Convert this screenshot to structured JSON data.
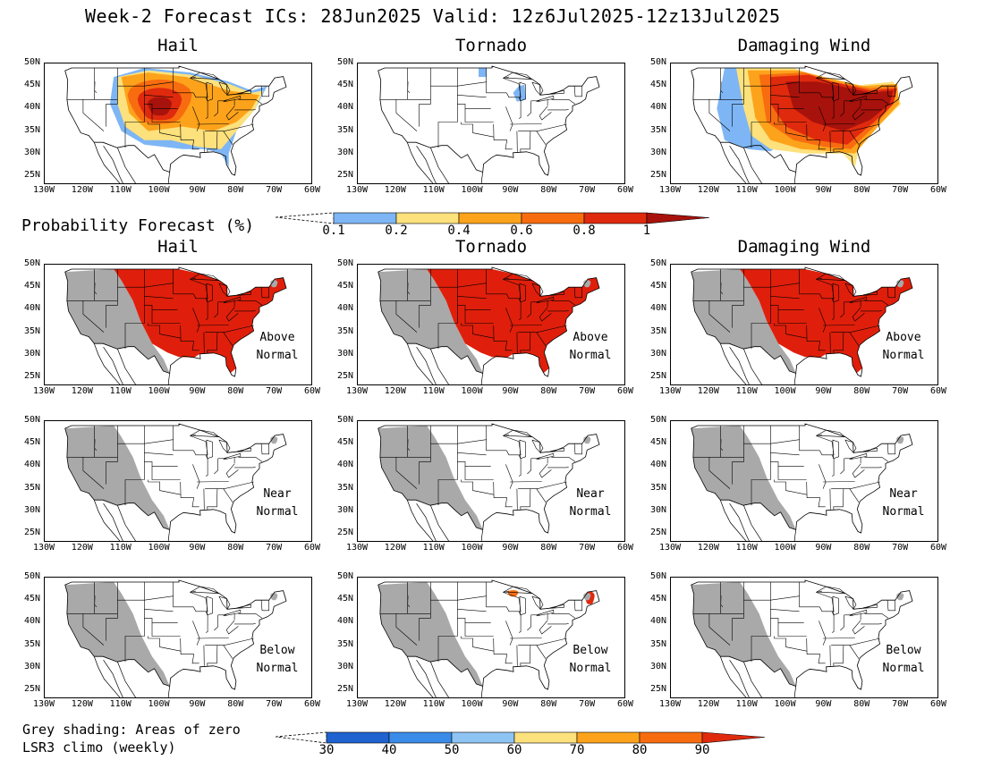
{
  "header": {
    "title": "Week-2 Forecast     ICs: 28Jun2025     Valid: 12z6Jul2025-12z13Jul2025"
  },
  "columns": [
    "Hail",
    "Tornado",
    "Damaging Wind"
  ],
  "prob_section": {
    "label": "Probability Forecast (%)",
    "colorbar": {
      "ticks": [
        "0.1",
        "0.2",
        "0.4",
        "0.6",
        "0.8",
        "1"
      ],
      "colors": [
        "#7eb6f5",
        "#fde17d",
        "#fda31b",
        "#f86c10",
        "#df2a0e",
        "#a8120c"
      ]
    }
  },
  "rows_labels": {
    "above": [
      "Above",
      "Normal"
    ],
    "near": [
      "Near",
      "Normal"
    ],
    "below": [
      "Below",
      "Normal"
    ]
  },
  "axes": {
    "lat_labels": [
      "50N",
      "45N",
      "40N",
      "35N",
      "30N",
      "25N"
    ],
    "lon_labels": [
      "130W",
      "120W",
      "110W",
      "100W",
      "90W",
      "80W",
      "70W",
      "60W"
    ]
  },
  "footer": {
    "note": "Grey shading: Areas of zero LSR3 climo (weekly)",
    "colorbar": {
      "ticks": [
        "30",
        "40",
        "50",
        "60",
        "70",
        "80",
        "90"
      ],
      "colors": [
        "#1f62d0",
        "#3b8be8",
        "#8ec4f4",
        "#fde17d",
        "#fda31b",
        "#f86c10",
        "#df2a0e"
      ]
    }
  },
  "colors": {
    "grey_zero_climo": "#a9a9a9",
    "above_normal": "#df1f0b",
    "border": "#000000"
  }
}
